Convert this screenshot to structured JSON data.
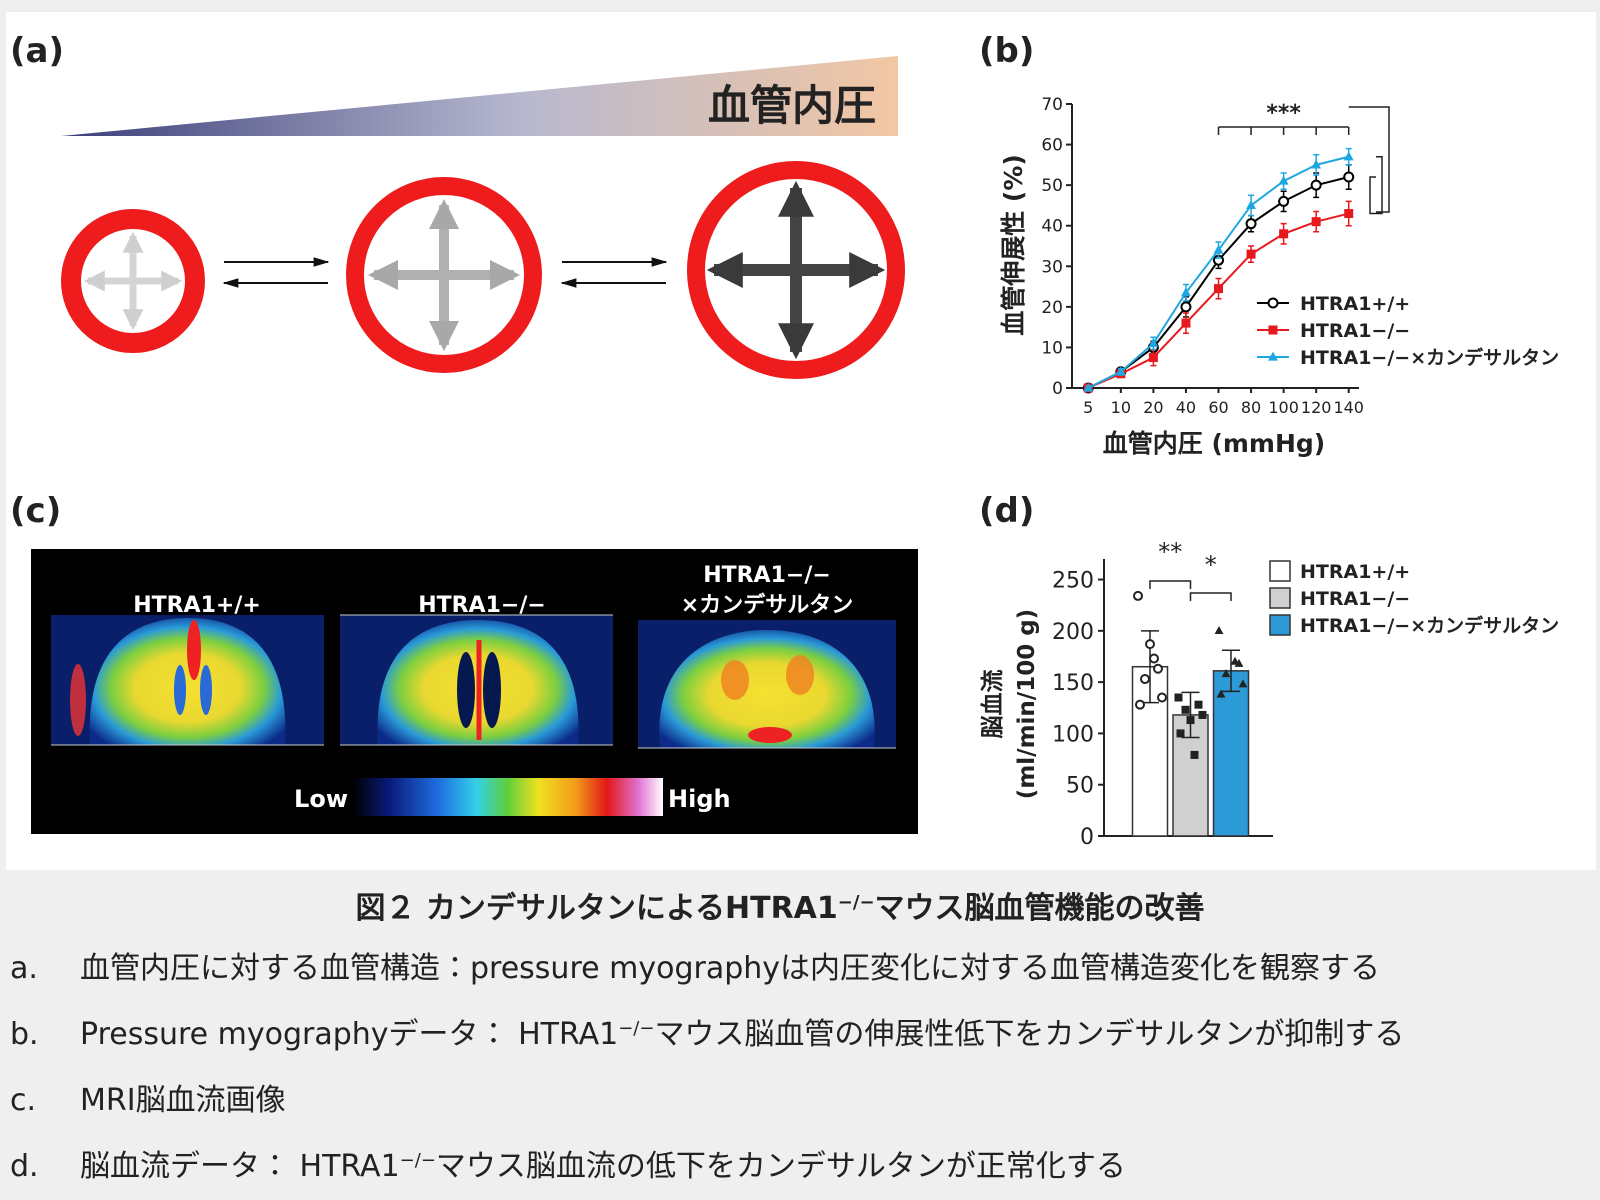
{
  "panel_a": {
    "label": "(a)",
    "pressure_label": "血管内圧"
  },
  "panel_b": {
    "label": "(b)"
  },
  "panel_c": {
    "label": "(c)",
    "image_titles": [
      [
        "HTRA1+/+"
      ],
      [
        "HTRA1−/−"
      ],
      [
        "HTRA1−/−",
        "×カンデサルタン"
      ]
    ],
    "scale_low": "Low",
    "scale_high": "High"
  },
  "panel_d": {
    "label": "(d)"
  },
  "chart_data": [
    {
      "type": "line",
      "x_label": "血管内圧 (mmHg)",
      "y_label": "血管伸展性 (%)",
      "categories": [
        "5",
        "10",
        "20",
        "40",
        "60",
        "80",
        "100",
        "120",
        "140"
      ],
      "ylim": [
        0,
        70
      ],
      "yticks": [
        0,
        10,
        20,
        30,
        40,
        50,
        60,
        70
      ],
      "annotation": "***",
      "series": [
        {
          "name": "HTRA1+/+",
          "color": "#000000",
          "marker": "open-circle",
          "values": [
            0,
            4,
            10,
            20,
            31.5,
            40.5,
            46,
            50,
            52
          ],
          "errors": [
            0.5,
            0.8,
            1.5,
            2.5,
            2,
            2,
            2.5,
            3,
            3
          ]
        },
        {
          "name": "HTRA1−/−",
          "color": "#e8191c",
          "marker": "square",
          "values": [
            0,
            3.5,
            7.5,
            16,
            24.5,
            33,
            38,
            41,
            43
          ],
          "errors": [
            0.5,
            0.8,
            2,
            2.5,
            2.5,
            2,
            2.5,
            2.5,
            3
          ]
        },
        {
          "name": "HTRA1−/−×カンデサルタン",
          "color": "#1ea7e1",
          "marker": "triangle",
          "values": [
            0,
            4,
            11,
            23.5,
            34,
            45,
            51,
            55,
            57
          ],
          "errors": [
            0.5,
            0.8,
            1.5,
            2,
            2,
            2.5,
            2,
            2.5,
            2
          ]
        }
      ]
    },
    {
      "type": "bar",
      "y_label": [
        "脳血流",
        "(ml/min/100 g)"
      ],
      "ylim": [
        0,
        270
      ],
      "yticks": [
        0,
        50,
        100,
        150,
        200,
        250
      ],
      "annotations": [
        "**",
        "*"
      ],
      "series": [
        {
          "name": "HTRA1+/+",
          "color": "#ffffff",
          "marker": "open-circle",
          "values": [
            165
          ],
          "errors": [
            35
          ],
          "points": [
            234,
            163,
            153,
            135,
            128,
            173,
            187
          ]
        },
        {
          "name": "HTRA1−/−",
          "color": "#d0d0d0",
          "marker": "square",
          "values": [
            118
          ],
          "errors": [
            22
          ],
          "points": [
            135,
            128,
            123,
            118,
            100,
            79,
            113
          ]
        },
        {
          "name": "HTRA1−/−×カンデサルタン",
          "color": "#2d9ad8",
          "marker": "triangle",
          "values": [
            161
          ],
          "errors": [
            20
          ],
          "points": [
            200,
            168,
            158,
            148,
            138,
            170
          ]
        }
      ]
    }
  ],
  "caption": {
    "title": [
      "図２ カンデサルタンによるHTRA1",
      "−/−",
      "マウス脳血管機能の改善"
    ],
    "items": [
      {
        "marker": "a.",
        "parts": [
          "血管内圧に対する血管構造：pressure myographyは内圧変化に対する血管構造変化を観察する"
        ]
      },
      {
        "marker": "b.",
        "parts": [
          "Pressure myographyデータ： HTRA1",
          "−/−",
          "マウス脳血管の伸展性低下をカンデサルタンが抑制する"
        ]
      },
      {
        "marker": "c.",
        "parts": [
          "MRI脳血流画像"
        ]
      },
      {
        "marker": "d.",
        "parts": [
          "脳血流データ： HTRA1",
          "−/−",
          "マウス脳血流の低下をカンデサルタンが正常化する"
        ]
      }
    ]
  }
}
